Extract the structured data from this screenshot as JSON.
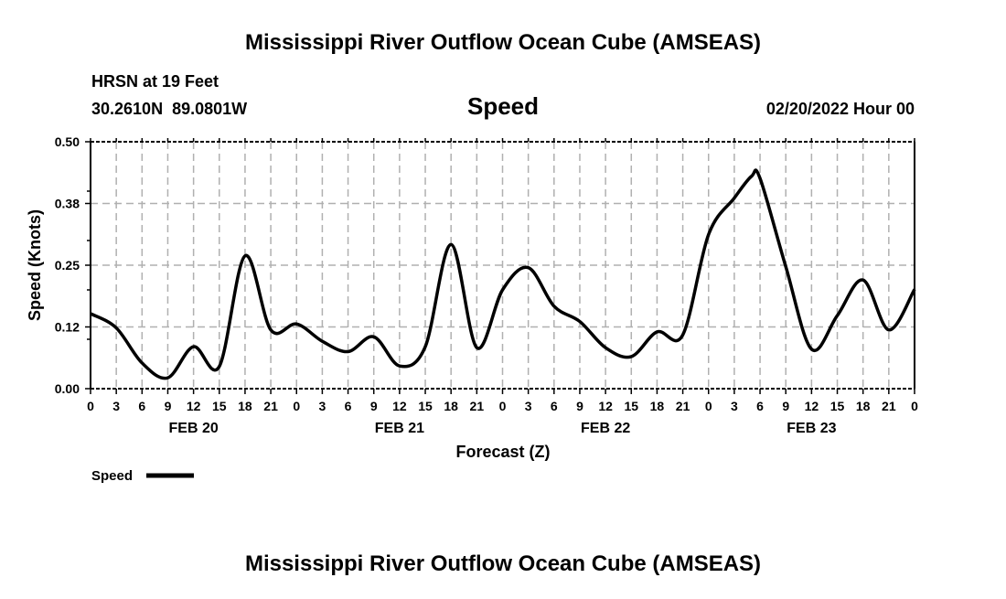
{
  "title": "Mississippi River Outflow Ocean Cube (AMSEAS)",
  "footer_title": "Mississippi River Outflow Ocean Cube (AMSEAS)",
  "station": "HRSN at 19 Feet",
  "location": "30.2610N  89.0801W",
  "date": "02/20/2022 Hour 00",
  "chart_data": {
    "type": "line",
    "title": "Speed",
    "xlabel": "Forecast (Z)",
    "ylabel": "Speed (Knots)",
    "ylim": [
      0,
      0.5
    ],
    "xlim": [
      0,
      96
    ],
    "y_ticks": [
      0,
      0.125,
      0.25,
      0.375,
      0.5
    ],
    "y_tick_labels": [
      "0.00",
      "0.12",
      "0.25",
      "0.38",
      "0.50"
    ],
    "x_tick_labels": [
      "0",
      "3",
      "6",
      "9",
      "12",
      "15",
      "18",
      "21",
      "0",
      "3",
      "6",
      "9",
      "12",
      "15",
      "18",
      "21",
      "0",
      "3",
      "6",
      "9",
      "12",
      "15",
      "18",
      "21",
      "0",
      "3",
      "6",
      "9",
      "12",
      "15",
      "18",
      "21",
      "0"
    ],
    "day_labels": [
      {
        "label": "FEB 20",
        "hour": 12
      },
      {
        "label": "FEB 21",
        "hour": 36
      },
      {
        "label": "FEB 22",
        "hour": 60
      },
      {
        "label": "FEB 23",
        "hour": 84
      }
    ],
    "grid": true,
    "legend": {
      "label": "Speed",
      "placement": "bottom-left"
    },
    "series": [
      {
        "name": "Speed",
        "color": "#000000",
        "x": [
          0,
          3,
          6,
          9,
          12,
          15,
          18,
          21,
          24,
          27,
          30,
          33,
          36,
          39,
          42,
          45,
          48,
          51,
          54,
          57,
          60,
          63,
          66,
          69,
          72,
          75,
          77,
          78,
          81,
          84,
          87,
          90,
          93,
          96
        ],
        "values": [
          0.152,
          0.123,
          0.052,
          0.022,
          0.085,
          0.045,
          0.269,
          0.119,
          0.131,
          0.096,
          0.075,
          0.105,
          0.046,
          0.085,
          0.292,
          0.083,
          0.2,
          0.245,
          0.167,
          0.136,
          0.083,
          0.065,
          0.115,
          0.109,
          0.312,
          0.386,
          0.43,
          0.426,
          0.247,
          0.08,
          0.148,
          0.22,
          0.119,
          0.201
        ]
      }
    ]
  }
}
